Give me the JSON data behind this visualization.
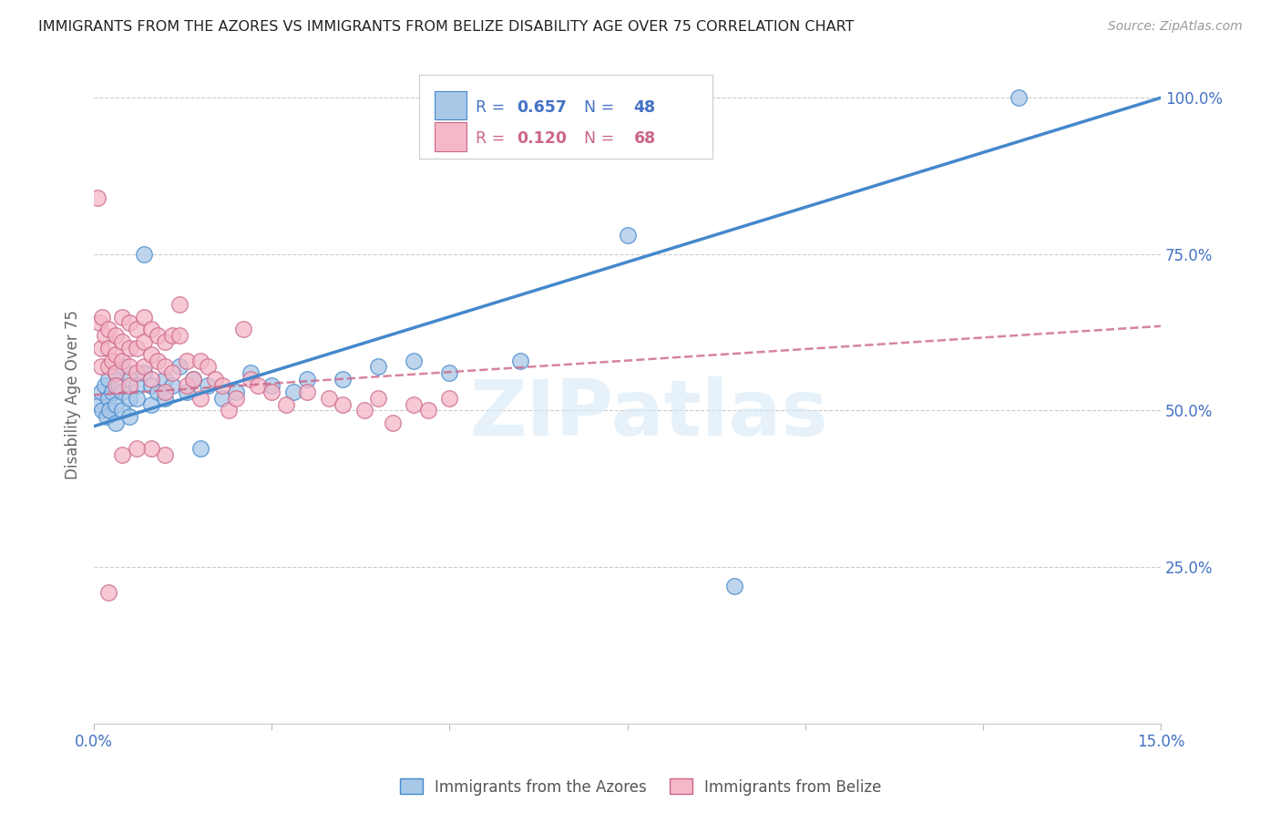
{
  "title": "IMMIGRANTS FROM THE AZORES VS IMMIGRANTS FROM BELIZE DISABILITY AGE OVER 75 CORRELATION CHART",
  "source": "Source: ZipAtlas.com",
  "ylabel": "Disability Age Over 75",
  "x_min": 0.0,
  "x_max": 0.15,
  "y_min": 0.0,
  "y_max": 1.05,
  "R1": 0.657,
  "N1": 48,
  "R2": 0.12,
  "N2": 68,
  "color_blue": "#a8c8e8",
  "color_pink": "#f4b8c8",
  "color_line_blue": "#4488cc",
  "color_line_pink": "#cc6688",
  "color_axis_text": "#4472c4",
  "watermark_text": "ZIPatlas",
  "azores_x": [
    0.0008,
    0.001,
    0.0012,
    0.0015,
    0.0018,
    0.002,
    0.002,
    0.0022,
    0.0025,
    0.003,
    0.003,
    0.003,
    0.0035,
    0.004,
    0.004,
    0.004,
    0.005,
    0.005,
    0.005,
    0.006,
    0.006,
    0.007,
    0.007,
    0.008,
    0.008,
    0.009,
    0.01,
    0.01,
    0.011,
    0.012,
    0.013,
    0.014,
    0.015,
    0.016,
    0.018,
    0.02,
    0.022,
    0.025,
    0.028,
    0.03,
    0.035,
    0.04,
    0.045,
    0.05,
    0.06,
    0.075,
    0.09,
    0.13
  ],
  "azores_y": [
    0.51,
    0.53,
    0.5,
    0.54,
    0.49,
    0.52,
    0.55,
    0.5,
    0.53,
    0.48,
    0.51,
    0.56,
    0.54,
    0.5,
    0.53,
    0.57,
    0.52,
    0.55,
    0.49,
    0.54,
    0.52,
    0.56,
    0.75,
    0.51,
    0.54,
    0.53,
    0.52,
    0.55,
    0.54,
    0.57,
    0.53,
    0.55,
    0.44,
    0.54,
    0.52,
    0.53,
    0.56,
    0.54,
    0.53,
    0.55,
    0.55,
    0.57,
    0.58,
    0.56,
    0.58,
    0.78,
    0.22,
    1.0
  ],
  "belize_x": [
    0.0005,
    0.0008,
    0.001,
    0.001,
    0.0012,
    0.0015,
    0.002,
    0.002,
    0.002,
    0.0025,
    0.003,
    0.003,
    0.003,
    0.003,
    0.004,
    0.004,
    0.004,
    0.005,
    0.005,
    0.005,
    0.005,
    0.006,
    0.006,
    0.006,
    0.007,
    0.007,
    0.007,
    0.008,
    0.008,
    0.008,
    0.009,
    0.009,
    0.01,
    0.01,
    0.01,
    0.011,
    0.011,
    0.012,
    0.012,
    0.013,
    0.013,
    0.014,
    0.015,
    0.015,
    0.016,
    0.017,
    0.018,
    0.019,
    0.02,
    0.021,
    0.022,
    0.023,
    0.025,
    0.027,
    0.03,
    0.033,
    0.035,
    0.038,
    0.04,
    0.042,
    0.045,
    0.047,
    0.05,
    0.01,
    0.008,
    0.006,
    0.004,
    0.002
  ],
  "belize_y": [
    0.84,
    0.64,
    0.6,
    0.57,
    0.65,
    0.62,
    0.63,
    0.6,
    0.57,
    0.58,
    0.62,
    0.59,
    0.56,
    0.54,
    0.65,
    0.61,
    0.58,
    0.64,
    0.6,
    0.57,
    0.54,
    0.63,
    0.6,
    0.56,
    0.65,
    0.61,
    0.57,
    0.63,
    0.59,
    0.55,
    0.62,
    0.58,
    0.61,
    0.57,
    0.53,
    0.62,
    0.56,
    0.67,
    0.62,
    0.58,
    0.54,
    0.55,
    0.58,
    0.52,
    0.57,
    0.55,
    0.54,
    0.5,
    0.52,
    0.63,
    0.55,
    0.54,
    0.53,
    0.51,
    0.53,
    0.52,
    0.51,
    0.5,
    0.52,
    0.48,
    0.51,
    0.5,
    0.52,
    0.43,
    0.44,
    0.44,
    0.43,
    0.21
  ]
}
